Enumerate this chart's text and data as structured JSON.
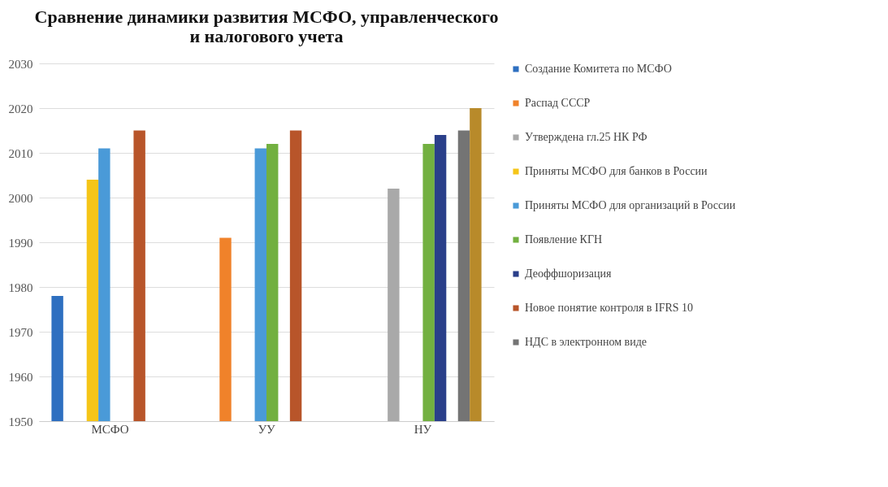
{
  "chart_data": {
    "type": "bar",
    "title": "Сравнение динамики развития МСФО, управленческого\nи налогового учета",
    "categories": [
      "МСФО",
      "УУ",
      "НУ"
    ],
    "series": [
      {
        "name": "Создание Комитета по МСФО",
        "color": "#2e6fc0",
        "values": [
          1978,
          null,
          null
        ]
      },
      {
        "name": "Распад СССР",
        "color": "#f0822a",
        "values": [
          null,
          1991,
          null
        ]
      },
      {
        "name": "Утверждена гл.25 НК РФ",
        "color": "#a9a9a9",
        "values": [
          null,
          null,
          2002
        ]
      },
      {
        "name": "Приняты МСФО для банков в России",
        "color": "#f5c518",
        "values": [
          2004,
          null,
          null
        ]
      },
      {
        "name": "Приняты МСФО для организаций в России",
        "color": "#4a9ad8",
        "values": [
          2011,
          2011,
          null
        ]
      },
      {
        "name": "Появление КГН",
        "color": "#72b040",
        "values": [
          null,
          2012,
          2012
        ]
      },
      {
        "name": "Деоффшоризация",
        "color": "#2a3f8a",
        "values": [
          null,
          null,
          2014
        ]
      },
      {
        "name": "Новое понятие контроля в IFRS 10",
        "color": "#b8552a",
        "values": [
          2015,
          2015,
          null
        ]
      },
      {
        "name": "НДС в электронном виде",
        "color": "#747474",
        "values": [
          null,
          null,
          2015
        ]
      },
      {
        "color": "#b88a2a",
        "values": [
          null,
          null,
          2020
        ]
      }
    ],
    "ylim": [
      1950,
      2030
    ],
    "yticks": [
      1950,
      1960,
      1970,
      1980,
      1990,
      2000,
      2010,
      2020,
      2030
    ],
    "grid": "y",
    "legend": "right"
  }
}
